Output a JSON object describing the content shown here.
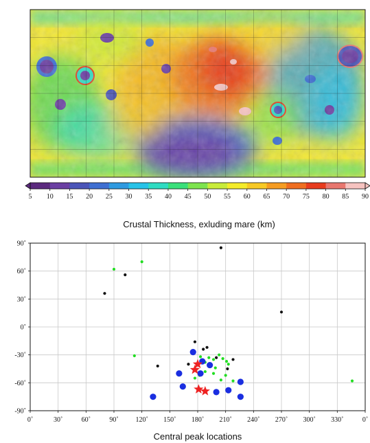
{
  "colorbar": {
    "ticks": [
      "5",
      "10",
      "15",
      "20",
      "25",
      "30",
      "35",
      "40",
      "45",
      "50",
      "55",
      "60",
      "65",
      "70",
      "75",
      "80",
      "85",
      "90"
    ],
    "colors": [
      "#5c2a7e",
      "#6b3fa2",
      "#4b55b8",
      "#3f6fd1",
      "#2f9ae0",
      "#27c3e8",
      "#2fdcc2",
      "#3ae07a",
      "#7de44e",
      "#c8ec3a",
      "#f4ec2a",
      "#f7c925",
      "#f59c22",
      "#ef6e20",
      "#e83c1e",
      "#e8776f",
      "#f6c3c0"
    ],
    "label": "Crustal Thickness, exluding mare (km)"
  },
  "chart_data": {
    "type": "scatter",
    "xlabel": "Central peak locations",
    "ylabel": "",
    "xlim": [
      0,
      360
    ],
    "ylim": [
      -90,
      90
    ],
    "grid": true,
    "x_ticks": [
      "0˚",
      "30˚",
      "60˚",
      "90˚",
      "120˚",
      "150˚",
      "180˚",
      "210˚",
      "240˚",
      "270˚",
      "300˚",
      "330˚",
      "0˚"
    ],
    "y_ticks": [
      "90˚",
      "60˚",
      "30˚",
      "0˚",
      "-30˚",
      "-60˚",
      "-90˚"
    ],
    "series": [
      {
        "color": "#111111",
        "marker": "small-dot",
        "x": [
          205,
          80,
          102,
          270,
          137,
          170,
          177,
          190,
          186,
          200,
          218,
          212
        ],
        "y": [
          85,
          36,
          56,
          16,
          -42,
          -40,
          -16,
          -22,
          -24,
          -33,
          -35,
          -45
        ]
      },
      {
        "color": "#22dd22",
        "marker": "small-dot",
        "x": [
          90,
          120,
          112,
          346,
          183,
          188,
          192,
          197,
          203,
          207,
          211,
          213,
          199,
          188,
          182,
          177,
          210,
          218,
          197,
          205
        ],
        "y": [
          62,
          70,
          -31,
          -58,
          -32,
          -38,
          -33,
          -35,
          -30,
          -34,
          -37,
          -40,
          -44,
          -48,
          -52,
          -55,
          -52,
          -58,
          -50,
          -57
        ]
      },
      {
        "color": "#1a2ee0",
        "marker": "large-dot",
        "x": [
          175,
          185,
          193,
          183,
          160,
          164,
          200,
          213,
          226,
          226,
          132
        ],
        "y": [
          -27,
          -37,
          -41,
          -50,
          -50,
          -64,
          -70,
          -68,
          -59,
          -75,
          -75
        ]
      },
      {
        "color": "#ee2222",
        "marker": "star",
        "x": [
          180,
          177,
          181,
          188
        ],
        "y": [
          -40,
          -46,
          -67,
          -69
        ]
      }
    ]
  }
}
